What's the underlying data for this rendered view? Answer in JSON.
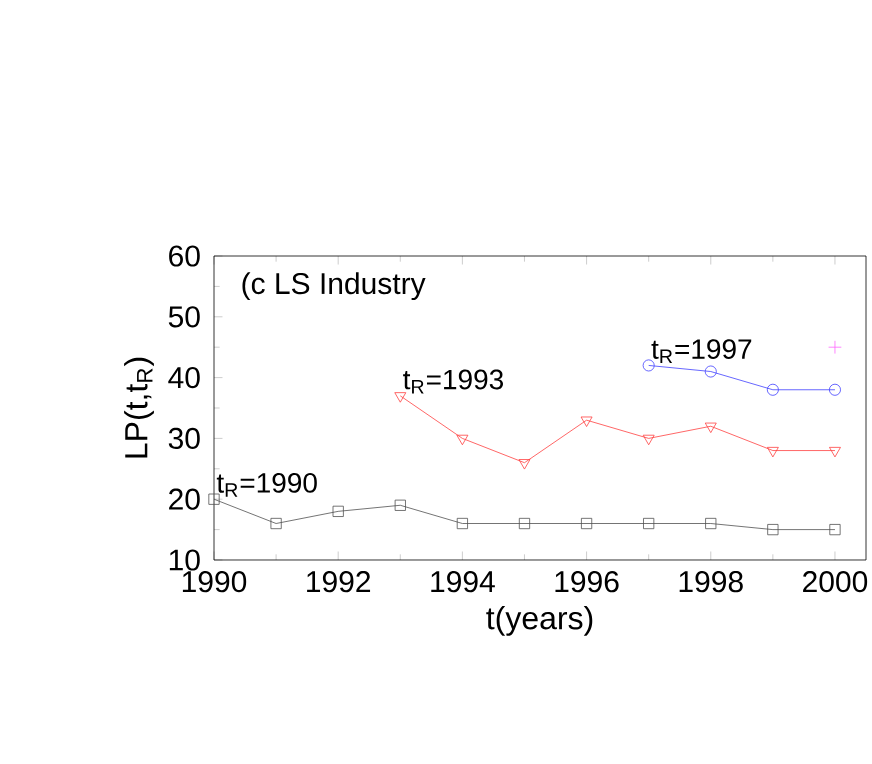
{
  "chart_data": {
    "type": "line",
    "title": "(c LS Industry",
    "xlabel": "t(years)",
    "ylabel": "LP(t,t$_{R}$)",
    "xlim": [
      1990,
      2000.5
    ],
    "xticks": [
      1990,
      1992,
      1994,
      1996,
      1998,
      2000
    ],
    "ylim": [
      10,
      60
    ],
    "yticks": [
      10,
      20,
      30,
      40,
      50,
      60
    ],
    "series": [
      {
        "name": "t$_{R}$=1990",
        "color": "#505050",
        "marker": "square",
        "x": [
          1990,
          1991,
          1992,
          1993,
          1994,
          1995,
          1996,
          1997,
          1998,
          1999,
          2000
        ],
        "values": [
          20,
          16,
          18,
          19,
          16,
          16,
          16,
          16,
          16,
          15,
          15
        ]
      },
      {
        "name": "t$_{R}$=1993",
        "color": "#ff4040",
        "marker": "triangle",
        "x": [
          1993,
          1994,
          1995,
          1996,
          1997,
          1998,
          1999,
          2000
        ],
        "values": [
          37,
          30,
          26,
          33,
          30,
          32,
          28,
          28
        ]
      },
      {
        "name": "t$_{R}$=1997",
        "color": "#4040ff",
        "marker": "circle",
        "x": [
          1997,
          1998,
          1999,
          2000
        ],
        "values": [
          42,
          41,
          38,
          38
        ]
      },
      {
        "color": "#ff66ff",
        "marker": "cross",
        "x": [
          2000
        ],
        "values": [
          45
        ]
      }
    ]
  }
}
